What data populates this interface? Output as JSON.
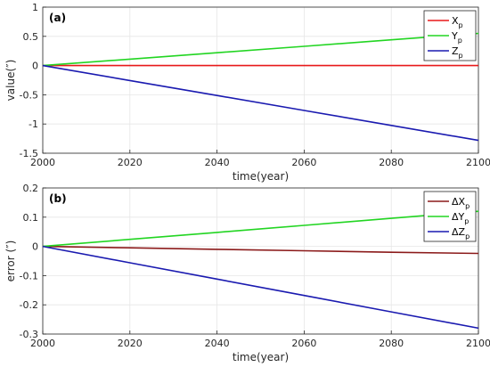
{
  "chart_data": [
    {
      "type": "line",
      "panel_label": "(a)",
      "xlabel": "time(year)",
      "ylabel": "value(″)",
      "xlim": [
        2000,
        2100
      ],
      "ylim": [
        -1.5,
        1
      ],
      "xticks": [
        "2000",
        "2020",
        "2040",
        "2060",
        "2080",
        "2100"
      ],
      "yticks": [
        "1",
        "0.5",
        "0",
        "-0.5",
        "-1",
        "-1.5"
      ],
      "grid": true,
      "legend_position": "top-right",
      "x": [
        2000,
        2020,
        2040,
        2060,
        2080,
        2100
      ],
      "series": [
        {
          "name": "X",
          "sub": "p",
          "color": "#e8191a",
          "values": [
            0,
            0.0,
            0.0,
            0.0,
            0.0,
            0.0
          ]
        },
        {
          "name": "Y",
          "sub": "p",
          "color": "#22d522",
          "values": [
            0,
            0.11,
            0.22,
            0.33,
            0.44,
            0.55
          ]
        },
        {
          "name": "Z",
          "sub": "p",
          "color": "#1a1ab0",
          "values": [
            0,
            -0.256,
            -0.512,
            -0.768,
            -1.024,
            -1.28
          ]
        }
      ]
    },
    {
      "type": "line",
      "panel_label": "(b)",
      "xlabel": "time(year)",
      "ylabel": "error (″)",
      "xlim": [
        2000,
        2100
      ],
      "ylim": [
        -0.3,
        0.2
      ],
      "xticks": [
        "2000",
        "2020",
        "2040",
        "2060",
        "2080",
        "2100"
      ],
      "yticks": [
        "0.2",
        "0.1",
        "0",
        "-0.1",
        "-0.2",
        "-0.3"
      ],
      "grid": true,
      "legend_position": "top-right",
      "x": [
        2000,
        2020,
        2040,
        2060,
        2080,
        2100
      ],
      "series": [
        {
          "name": "ΔX",
          "sub": "p",
          "color": "#8b1a1a",
          "values": [
            0,
            -0.005,
            -0.01,
            -0.015,
            -0.02,
            -0.024
          ]
        },
        {
          "name": "ΔY",
          "sub": "p",
          "color": "#22d522",
          "values": [
            0,
            0.024,
            0.048,
            0.072,
            0.096,
            0.12
          ]
        },
        {
          "name": "ΔZ",
          "sub": "p",
          "color": "#1a1ab0",
          "values": [
            0,
            -0.056,
            -0.112,
            -0.168,
            -0.224,
            -0.28
          ]
        }
      ]
    }
  ]
}
